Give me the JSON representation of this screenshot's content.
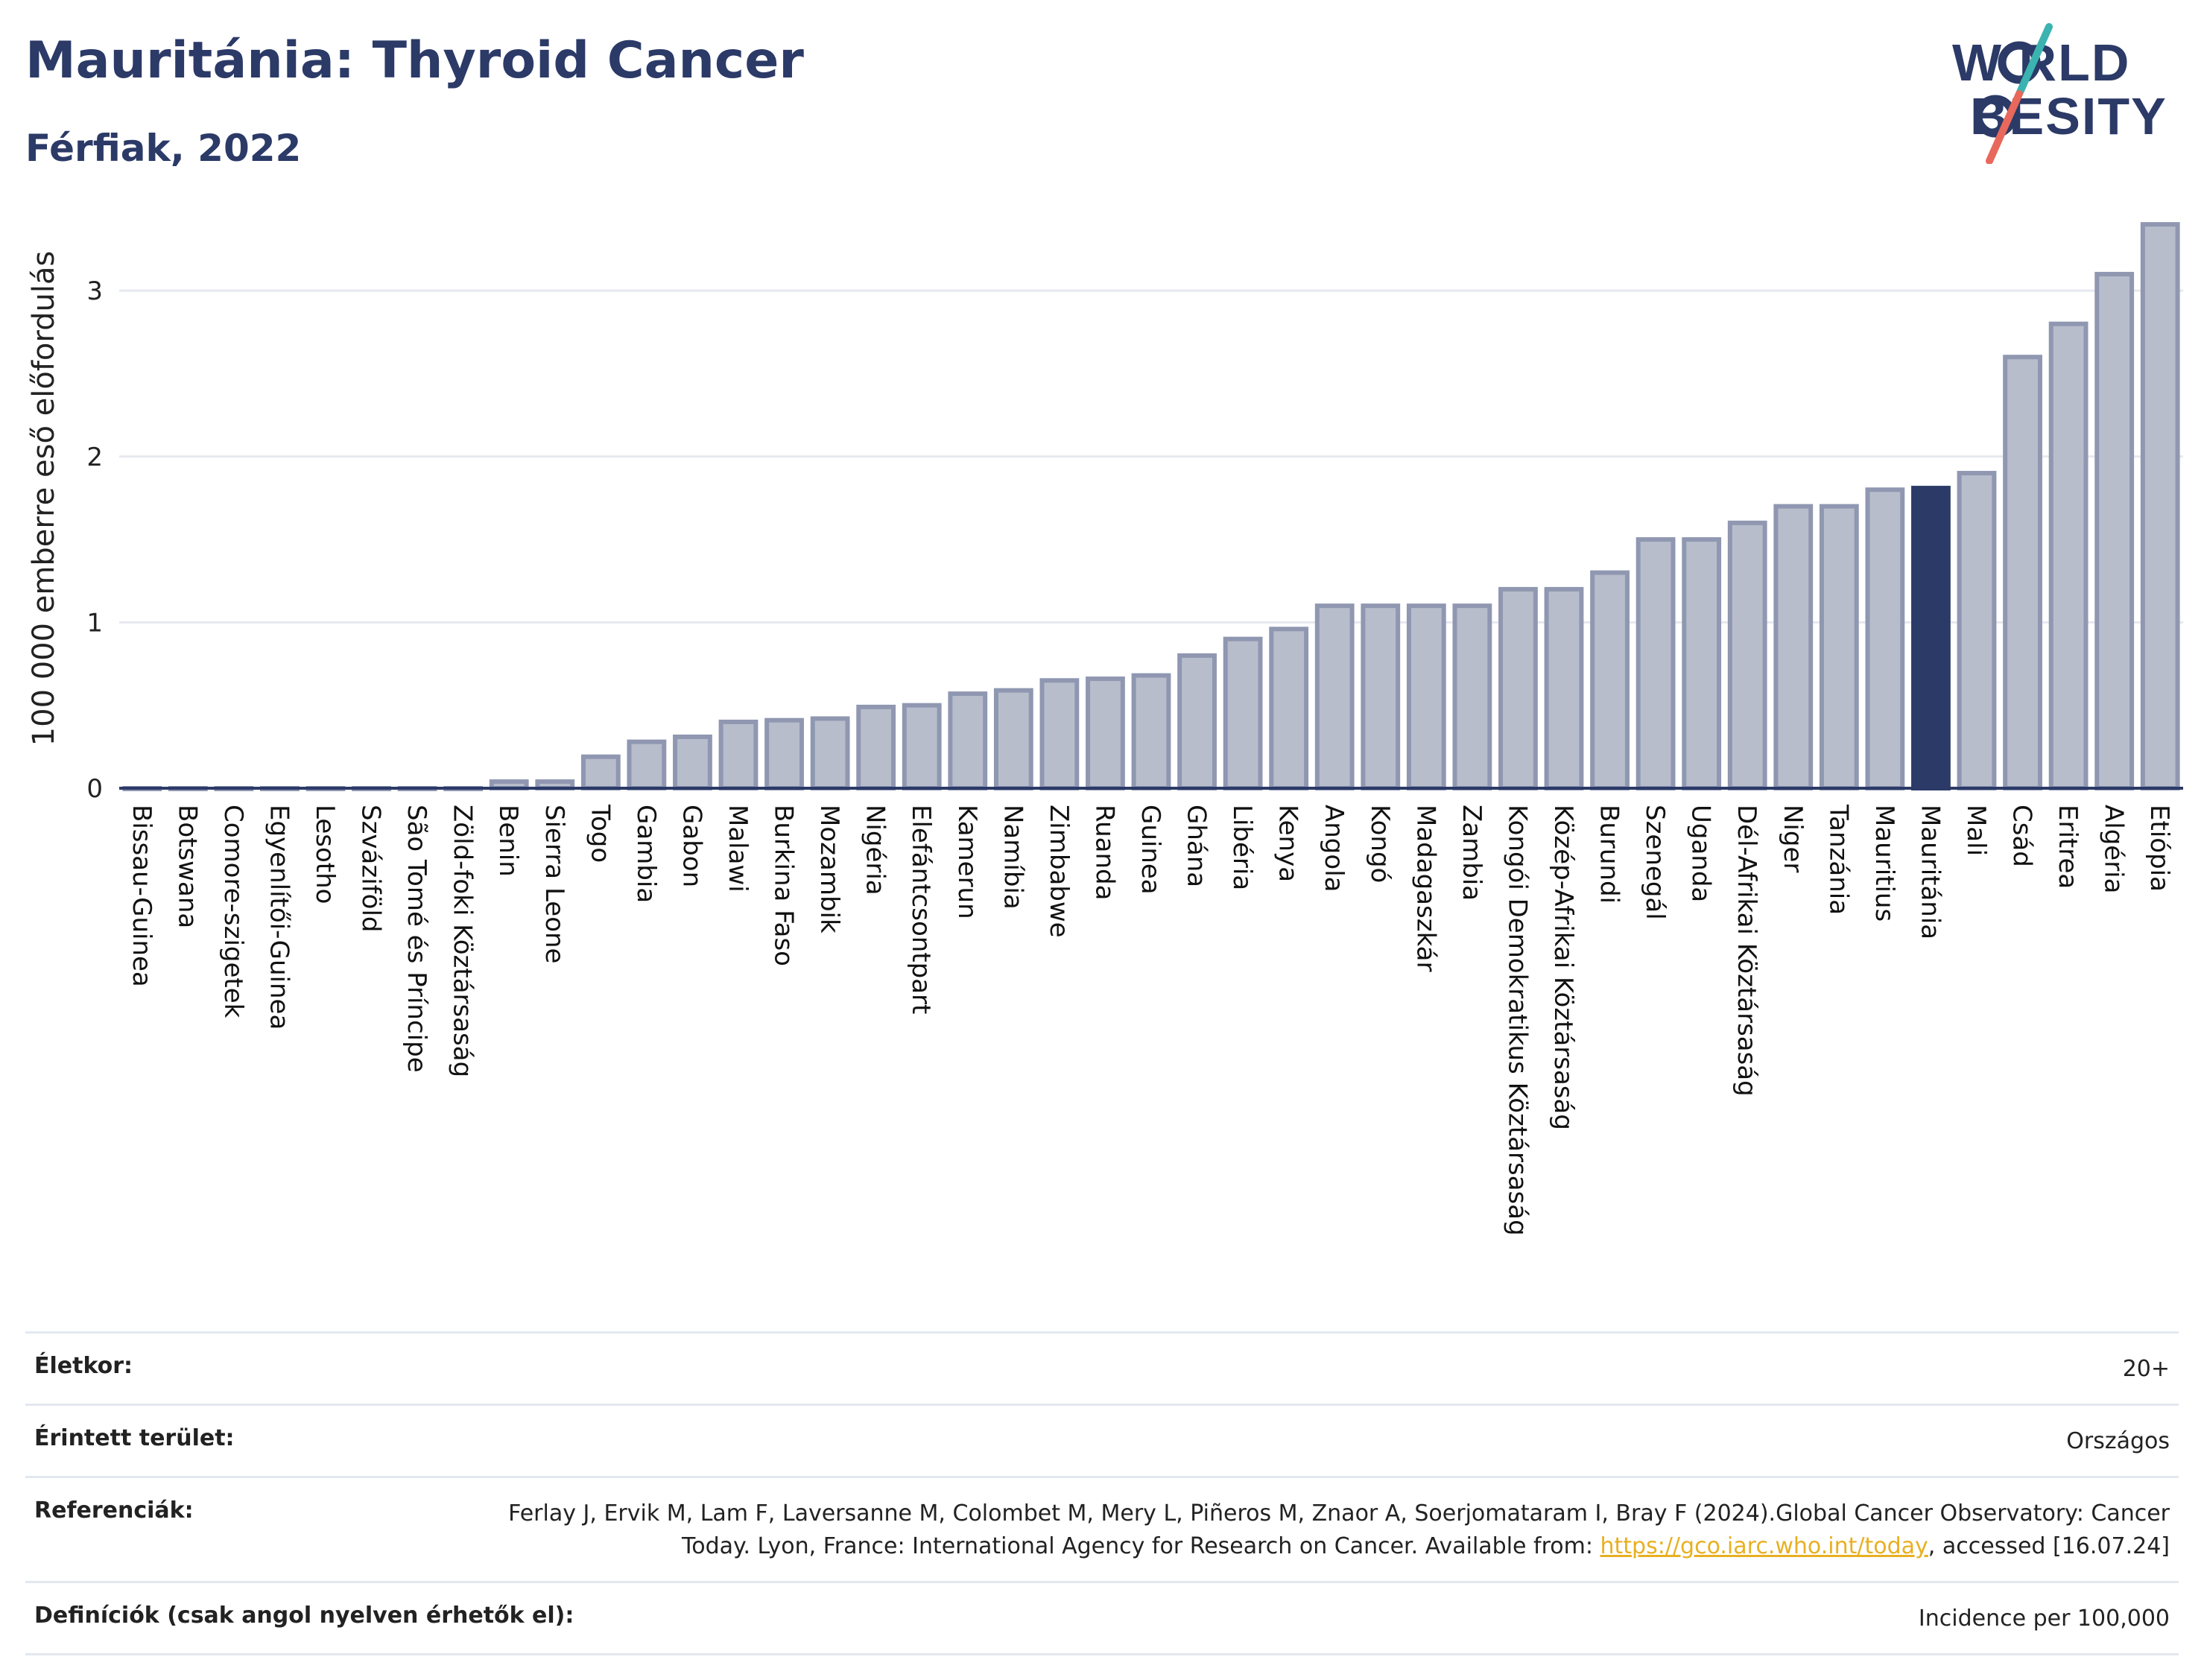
{
  "header": {
    "title": "Mauritánia: Thyroid Cancer",
    "subtitle": "Férfiak, 2022"
  },
  "logo": {
    "line1": "WORLD",
    "line2": "OBESITY"
  },
  "colors": {
    "bar": "#b8bdcc",
    "bar_border": "#8f97b1",
    "highlight": "#2b3a67",
    "grid": "#e6e9ef",
    "title": "#2b3a67"
  },
  "chart_data": {
    "type": "bar",
    "ylabel": "100 000 emberre eső előfordulás",
    "ylim": [
      0,
      3.45
    ],
    "yticks": [
      0,
      1,
      2,
      3
    ],
    "grid": true,
    "highlight": "Mauritánia",
    "categories": [
      "Bissau-Guinea",
      "Botswana",
      "Comore-szigetek",
      "Egyenlítői-Guinea",
      "Lesotho",
      "Szváziföld",
      "São Tomé és Príncipe",
      "Zöld-foki Köztársaság",
      "Benin",
      "Sierra Leone",
      "Togo",
      "Gambia",
      "Gabon",
      "Malawi",
      "Burkina Faso",
      "Mozambik",
      "Nigéria",
      "Elefántcsontpart",
      "Kamerun",
      "Namíbia",
      "Zimbabwe",
      "Ruanda",
      "Guinea",
      "Ghána",
      "Libéria",
      "Kenya",
      "Angola",
      "Kongó",
      "Madagaszkár",
      "Zambia",
      "Kongói Demokratikus Köztársaság",
      "Közép-Afrikai Köztársaság",
      "Burundi",
      "Szenegál",
      "Uganda",
      "Dél-Afrikai Köztársaság",
      "Niger",
      "Tanzánia",
      "Mauritius",
      "Mauritánia",
      "Mali",
      "Csád",
      "Eritrea",
      "Algéria",
      "Etiópia"
    ],
    "values": [
      0.0,
      0.0,
      0.0,
      0.0,
      0.0,
      0.0,
      0.0,
      0.0,
      0.04,
      0.04,
      0.19,
      0.28,
      0.31,
      0.4,
      0.41,
      0.42,
      0.49,
      0.5,
      0.57,
      0.59,
      0.65,
      0.66,
      0.68,
      0.8,
      0.9,
      0.96,
      1.1,
      1.1,
      1.1,
      1.1,
      1.2,
      1.2,
      1.3,
      1.5,
      1.5,
      1.6,
      1.7,
      1.7,
      1.8,
      1.81,
      1.9,
      2.6,
      2.8,
      3.1,
      3.4
    ]
  },
  "meta": {
    "age_label": "Életkor:",
    "age_value": "20+",
    "area_label": "Érintett terület:",
    "area_value": "Országos",
    "ref_label": "Referenciák:",
    "ref_text": "Ferlay J, Ervik M, Lam F, Laversanne M, Colombet M, Mery L, Piñeros M, Znaor A, Soerjomataram I, Bray F (2024).Global Cancer Observatory: Cancer Today. Lyon, France: International Agency for Research on Cancer. Available from: ",
    "ref_link": "https://gco.iarc.who.int/today",
    "ref_tail": ", accessed [16.07.24]",
    "def_label": "Definíciók (csak angol nyelven érhetők el):",
    "def_value": "Incidence per 100,000"
  }
}
